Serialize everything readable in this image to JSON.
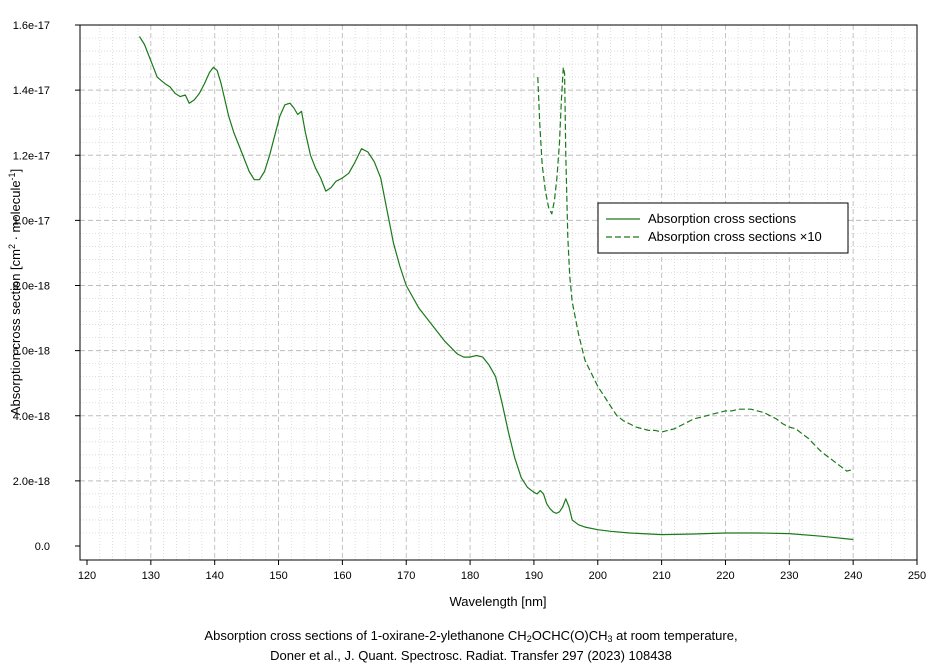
{
  "chart_data": {
    "type": "line",
    "xlabel": "Wavelength [nm]",
    "ylabel": "Absorption cross section [cm2 · molecule-1]",
    "ylabel_parts": {
      "pre": "Absorption cross section [cm",
      "sup1": "2",
      "mid": " · molecule",
      "sup2": "-1",
      "post": "]"
    },
    "xlim": [
      120,
      250
    ],
    "ylim": [
      0,
      1.6e-17
    ],
    "xticks": [
      "120",
      "130",
      "140",
      "150",
      "160",
      "170",
      "180",
      "190",
      "200",
      "210",
      "220",
      "230",
      "240",
      "250"
    ],
    "xtick_values": [
      120,
      130,
      140,
      150,
      160,
      170,
      180,
      190,
      200,
      210,
      220,
      230,
      240,
      250
    ],
    "yticks": [
      "0.0",
      "2.0e-18",
      "4.0e-18",
      "6.0e-18",
      "8.0e-18",
      "1.0e-17",
      "1.2e-17",
      "1.4e-17",
      "1.6e-17"
    ],
    "ytick_values": [
      0,
      2e-18,
      4e-18,
      6e-18,
      8e-18,
      1e-17,
      1.2e-17,
      1.4e-17,
      1.6e-17
    ],
    "grid": true,
    "legend_position": "right",
    "series": [
      {
        "name": "Absorption cross sections",
        "style": "solid",
        "color": "#1a7a1a",
        "x": [
          128.2,
          129,
          129.8,
          130.4,
          131,
          131.6,
          132.2,
          133,
          133.8,
          134.6,
          135.4,
          136,
          136.8,
          137.6,
          138.4,
          139.2,
          139.8,
          140.4,
          141,
          141.6,
          142.2,
          143,
          143.8,
          144.6,
          145.4,
          146.2,
          147,
          147.8,
          148.6,
          149.4,
          150.2,
          151,
          151.8,
          152.4,
          153,
          153.6,
          154.2,
          155,
          155.8,
          156.6,
          157.4,
          158.2,
          159,
          160,
          161,
          162,
          163,
          164,
          165,
          166,
          167,
          168,
          169,
          170,
          172,
          174,
          176,
          178,
          179,
          180,
          181,
          182,
          183,
          184,
          185,
          186,
          187,
          188,
          189,
          190,
          190.5,
          191,
          191.5,
          192,
          192.5,
          193,
          193.5,
          194,
          194.5,
          195,
          195.5,
          196,
          197,
          198,
          200,
          202,
          205,
          210,
          215,
          220,
          225,
          230,
          235,
          240
        ],
        "y": [
          1.565e-17,
          1.54e-17,
          1.5e-17,
          1.47e-17,
          1.44e-17,
          1.43e-17,
          1.42e-17,
          1.41e-17,
          1.39e-17,
          1.38e-17,
          1.385e-17,
          1.36e-17,
          1.37e-17,
          1.39e-17,
          1.42e-17,
          1.455e-17,
          1.47e-17,
          1.46e-17,
          1.42e-17,
          1.37e-17,
          1.32e-17,
          1.27e-17,
          1.23e-17,
          1.19e-17,
          1.15e-17,
          1.125e-17,
          1.125e-17,
          1.15e-17,
          1.2e-17,
          1.26e-17,
          1.32e-17,
          1.355e-17,
          1.36e-17,
          1.345e-17,
          1.325e-17,
          1.335e-17,
          1.27e-17,
          1.2e-17,
          1.16e-17,
          1.13e-17,
          1.09e-17,
          1.1e-17,
          1.12e-17,
          1.13e-17,
          1.145e-17,
          1.18e-17,
          1.22e-17,
          1.21e-17,
          1.18e-17,
          1.13e-17,
          1.03e-17,
          9.3e-18,
          8.6e-18,
          8e-18,
          7.3e-18,
          6.8e-18,
          6.3e-18,
          5.9e-18,
          5.8e-18,
          5.8e-18,
          5.85e-18,
          5.8e-18,
          5.55e-18,
          5.2e-18,
          4.4e-18,
          3.5e-18,
          2.7e-18,
          2.1e-18,
          1.8e-18,
          1.65e-18,
          1.6e-18,
          1.7e-18,
          1.6e-18,
          1.3e-18,
          1.15e-18,
          1.05e-18,
          1e-18,
          1.05e-18,
          1.2e-18,
          1.45e-18,
          1.2e-18,
          8e-19,
          6.5e-19,
          5.8e-19,
          5e-19,
          4.5e-19,
          4e-19,
          3.5e-19,
          3.7e-19,
          4e-19,
          4e-19,
          3.8e-19,
          3e-19,
          2e-19
        ]
      },
      {
        "name": "Absorption cross sections ×10",
        "style": "dashed",
        "color": "#1a7a1a",
        "x": [
          190.6,
          190.9,
          191.3,
          191.8,
          192.3,
          192.8,
          193.2,
          193.6,
          194.0,
          194.3,
          194.6,
          194.8,
          195.0,
          195.3,
          195.6,
          196,
          196.5,
          197,
          198,
          199,
          200,
          201,
          202,
          203,
          204,
          205,
          206,
          207,
          208,
          209,
          210,
          211,
          212,
          213,
          214,
          215,
          216,
          217,
          218,
          219,
          220,
          221,
          222,
          223,
          224,
          225,
          226,
          227,
          228,
          229,
          230,
          231,
          232,
          233,
          234,
          235,
          236,
          237,
          238,
          239,
          240
        ],
        "y": [
          1.44e-17,
          1.3e-17,
          1.17e-17,
          1.09e-17,
          1.04e-17,
          1.02e-17,
          1.06e-17,
          1.13e-17,
          1.24e-17,
          1.37e-17,
          1.47e-17,
          1.45e-17,
          1.2e-17,
          9.5e-18,
          8.3e-18,
          7.5e-18,
          7e-18,
          6.5e-18,
          5.7e-18,
          5.3e-18,
          4.9e-18,
          4.6e-18,
          4.3e-18,
          4e-18,
          3.85e-18,
          3.75e-18,
          3.65e-18,
          3.6e-18,
          3.55e-18,
          3.55e-18,
          3.5e-18,
          3.55e-18,
          3.6e-18,
          3.7e-18,
          3.8e-18,
          3.9e-18,
          3.95e-18,
          4e-18,
          4.05e-18,
          4.1e-18,
          4.15e-18,
          4.15e-18,
          4.2e-18,
          4.2e-18,
          4.2e-18,
          4.15e-18,
          4.1e-18,
          4e-18,
          3.9e-18,
          3.75e-18,
          3.65e-18,
          3.6e-18,
          3.45e-18,
          3.3e-18,
          3.1e-18,
          2.9e-18,
          2.75e-18,
          2.6e-18,
          2.45e-18,
          2.3e-18,
          2.35e-18
        ]
      }
    ]
  },
  "caption": {
    "line1_pre": "Absorption cross sections of 1-oxirane-2-ylethanone CH",
    "line1_sub1": "2",
    "line1_mid": "OCHC(O)CH",
    "line1_sub2": "3",
    "line1_post": " at room temperature,",
    "line2": "Doner et al., J. Quant. Spectrosc. Radiat. Transfer 297 (2023) 108438"
  }
}
